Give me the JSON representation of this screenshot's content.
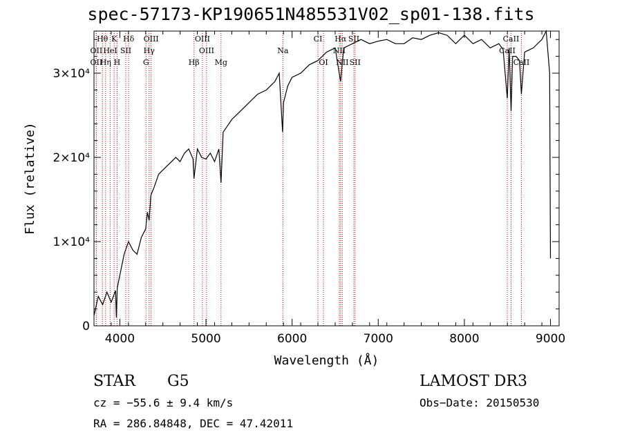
{
  "chart_data": {
    "type": "line",
    "title": "spec-57173-KP190651N485531V02_sp01-138.fits",
    "xlabel": "Wavelength (Å)",
    "ylabel": "Flux (relative)",
    "xlim": [
      3700,
      9100
    ],
    "ylim": [
      0,
      35000
    ],
    "x_ticks": [
      4000,
      5000,
      6000,
      7000,
      8000,
      9000
    ],
    "x_tick_labels": [
      "4000",
      "5000",
      "6000",
      "7000",
      "8000",
      "9000"
    ],
    "y_ticks": [
      0,
      10000,
      20000,
      30000
    ],
    "y_tick_labels": [
      "0",
      "1×10⁴",
      "2×10⁴",
      "3×10⁴"
    ],
    "grid": false,
    "series": [
      {
        "x": [
          3700,
          3750,
          3800,
          3850,
          3900,
          3950,
          3960,
          3970,
          4000,
          4050,
          4100,
          4150,
          4200,
          4250,
          4300,
          4320,
          4340,
          4360,
          4400,
          4450,
          4500,
          4550,
          4600,
          4650,
          4700,
          4750,
          4800,
          4850,
          4861,
          4900,
          4950,
          5000,
          5050,
          5100,
          5150,
          5175,
          5200,
          5300,
          5400,
          5500,
          5600,
          5700,
          5800,
          5850,
          5890,
          5900,
          5950,
          6000,
          6100,
          6200,
          6300,
          6400,
          6500,
          6563,
          6600,
          6700,
          6800,
          6900,
          7000,
          7100,
          7200,
          7300,
          7400,
          7500,
          7600,
          7700,
          7800,
          7900,
          8000,
          8100,
          8200,
          8300,
          8400,
          8450,
          8498,
          8520,
          8542,
          8560,
          8600,
          8640,
          8662,
          8700,
          8800,
          8900,
          8950,
          8990,
          9000
        ],
        "y": [
          1200,
          3500,
          2500,
          4000,
          2800,
          4200,
          1000,
          4500,
          6000,
          8500,
          10000,
          9000,
          8500,
          10500,
          11500,
          13500,
          12500,
          15500,
          16500,
          18000,
          18500,
          19000,
          19500,
          20000,
          19500,
          20500,
          21000,
          19800,
          17500,
          21000,
          20000,
          19800,
          20500,
          19500,
          21000,
          17000,
          23000,
          24500,
          25500,
          26500,
          27500,
          28000,
          29000,
          30000,
          23000,
          26500,
          28500,
          29500,
          30000,
          31000,
          31500,
          32500,
          33000,
          29000,
          33000,
          33500,
          34000,
          33500,
          33800,
          34000,
          33500,
          33500,
          34200,
          34000,
          34500,
          34800,
          34500,
          33500,
          34500,
          33500,
          34000,
          33000,
          33500,
          32800,
          27000,
          33000,
          25500,
          32000,
          32000,
          31500,
          27500,
          32500,
          33000,
          34000,
          35000,
          30000,
          8000
        ]
      }
    ],
    "line_markers": [
      {
        "label": "Hθ",
        "x": 3798,
        "row": 1
      },
      {
        "label": "K",
        "x": 3934,
        "row": 1
      },
      {
        "label": "Hδ",
        "x": 4102,
        "row": 1
      },
      {
        "label": "OIII",
        "x": 4363,
        "row": 1
      },
      {
        "label": "OIII",
        "x": 4959,
        "row": 1
      },
      {
        "label": "CI",
        "x": 6300,
        "row": 1
      },
      {
        "label": "Hα",
        "x": 6563,
        "row": 1
      },
      {
        "label": "SII",
        "x": 6717,
        "row": 1
      },
      {
        "label": "CaII",
        "x": 8542,
        "row": 1
      },
      {
        "label": "OII",
        "x": 3727,
        "row": 2
      },
      {
        "label": "HeI",
        "x": 3889,
        "row": 2
      },
      {
        "label": "SII",
        "x": 4069,
        "row": 2
      },
      {
        "label": "Hγ",
        "x": 4340,
        "row": 2
      },
      {
        "label": "OIII",
        "x": 5007,
        "row": 2
      },
      {
        "label": "Na",
        "x": 5893,
        "row": 2
      },
      {
        "label": "NII",
        "x": 6548,
        "row": 2
      },
      {
        "label": "CaII",
        "x": 8498,
        "row": 2
      },
      {
        "label": "OII",
        "x": 3727,
        "row": 3
      },
      {
        "label": "Hη",
        "x": 3835,
        "row": 3
      },
      {
        "label": "H",
        "x": 3968,
        "row": 3
      },
      {
        "label": "G",
        "x": 4304,
        "row": 3
      },
      {
        "label": "Hβ",
        "x": 4861,
        "row": 3
      },
      {
        "label": "Mg",
        "x": 5175,
        "row": 3
      },
      {
        "label": "OI",
        "x": 6364,
        "row": 3
      },
      {
        "label": "NII",
        "x": 6583,
        "row": 3
      },
      {
        "label": "SII",
        "x": 6731,
        "row": 3
      },
      {
        "label": "CaII",
        "x": 8662,
        "row": 3
      }
    ],
    "marker_color": "#cc0000"
  },
  "info": {
    "object_class": "STAR",
    "subclass": "G5",
    "survey": "LAMOST DR3",
    "cz": "cz = −55.6 ± 9.4 km/s",
    "obs_date": "Obs−Date: 20150530",
    "coords": "RA = 286.84848, DEC =  47.42011"
  }
}
